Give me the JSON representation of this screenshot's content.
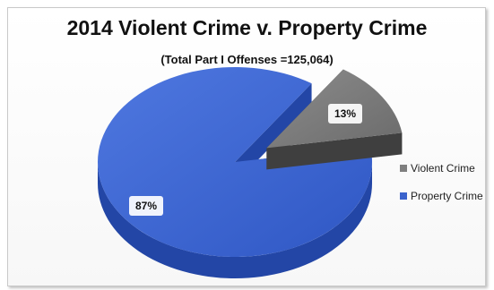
{
  "chart_data": {
    "type": "pie",
    "title": "2014 Violent Crime v. Property Crime",
    "subtitle": "(Total Part I Offenses =125,064)",
    "categories": [
      "Violent Crime",
      "Property Crime"
    ],
    "values": [
      13,
      87
    ],
    "data_labels": [
      "13%",
      "87%"
    ],
    "colors": [
      "#7f7f7f",
      "#3a62cc"
    ],
    "style": "3d-exploded",
    "legend_position": "right"
  }
}
